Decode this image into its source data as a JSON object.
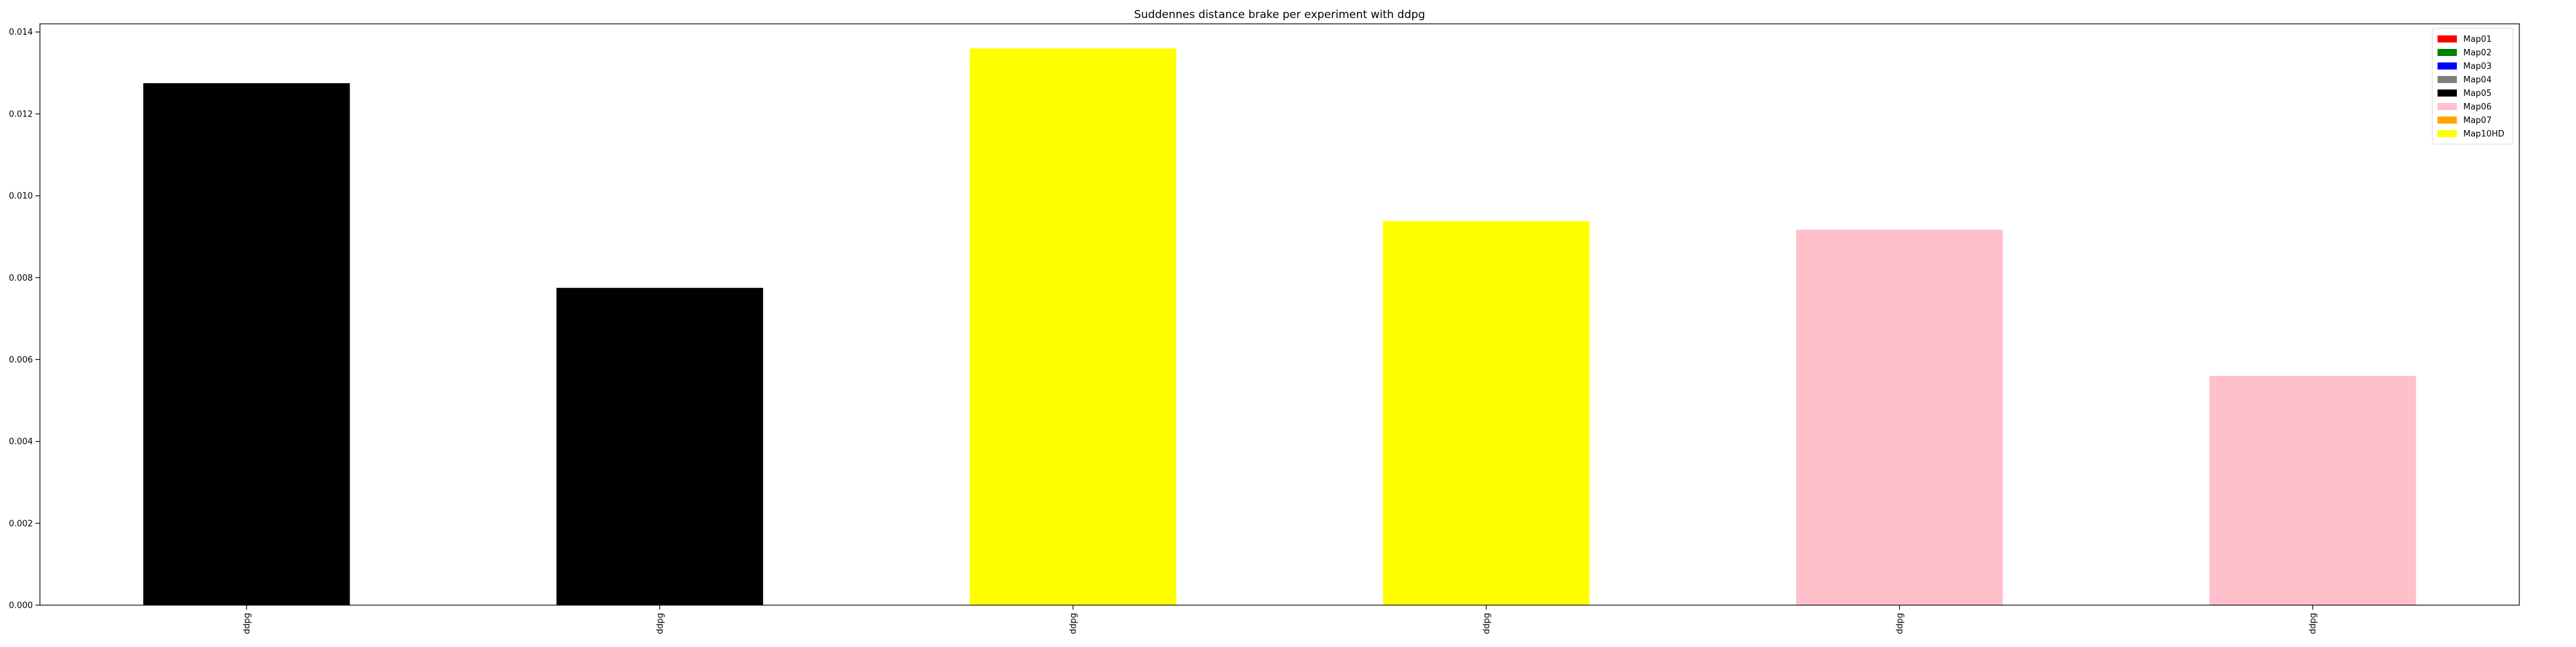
{
  "chart_data": {
    "type": "bar",
    "title": "Suddennes distance brake per experiment with ddpg",
    "xlabel": "",
    "ylabel": "",
    "categories": [
      "ddpg",
      "ddpg",
      "ddpg",
      "ddpg",
      "ddpg",
      "ddpg"
    ],
    "values": [
      0.01275,
      0.00775,
      0.0136,
      0.00938,
      0.00917,
      0.0056
    ],
    "bar_colors": [
      "#000000",
      "#000000",
      "#ffff00",
      "#ffff00",
      "#ffc0cb",
      "#ffc0cb"
    ],
    "ylim": [
      0,
      0.0142
    ],
    "yticks": [
      0.0,
      0.002,
      0.004,
      0.006,
      0.008,
      0.01,
      0.012,
      0.014
    ],
    "ytick_labels": [
      "0.000",
      "0.002",
      "0.004",
      "0.006",
      "0.008",
      "0.010",
      "0.012",
      "0.014"
    ],
    "grid": false,
    "legend": {
      "placement": "top-right",
      "entries": [
        {
          "label": "Map01",
          "color": "#ff0000"
        },
        {
          "label": "Map02",
          "color": "#008000"
        },
        {
          "label": "Map03",
          "color": "#0000ff"
        },
        {
          "label": "Map04",
          "color": "#808080"
        },
        {
          "label": "Map05",
          "color": "#000000"
        },
        {
          "label": "Map06",
          "color": "#ffc0cb"
        },
        {
          "label": "Map07",
          "color": "#ffa500"
        },
        {
          "label": "Map10HD",
          "color": "#ffff00"
        }
      ]
    }
  }
}
